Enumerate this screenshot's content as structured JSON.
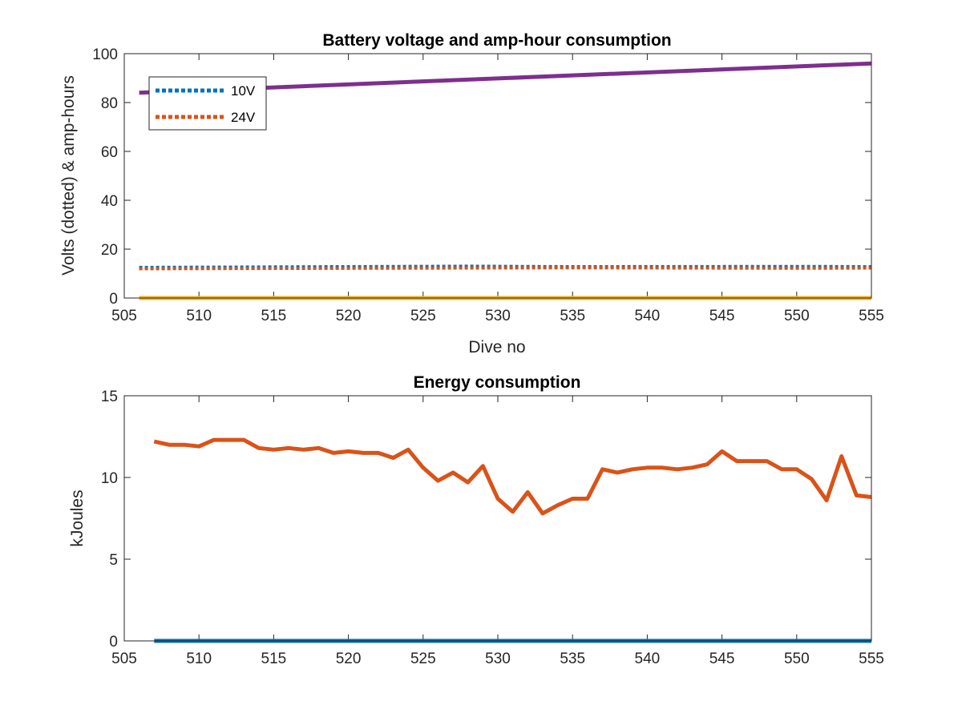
{
  "chart_data": [
    {
      "type": "line",
      "title": "Battery voltage and amp-hour consumption",
      "xlabel": "Dive no",
      "ylabel": "Volts (dotted) & amp-hours",
      "xlim": [
        505,
        555
      ],
      "ylim": [
        0,
        100
      ],
      "xticks": [
        505,
        510,
        515,
        520,
        525,
        530,
        535,
        540,
        545,
        550,
        555
      ],
      "yticks": [
        0,
        20,
        40,
        60,
        80,
        100
      ],
      "grid": false,
      "legend_position": "top-left",
      "series": [
        {
          "name": "10V",
          "style": "dotted",
          "color": "#0072BD",
          "x": [
            506,
            528,
            535,
            551,
            555
          ],
          "y": [
            12.5,
            13.0,
            12.8,
            12.9,
            12.8
          ]
        },
        {
          "name": "24V",
          "style": "dotted",
          "color": "#D95319",
          "x": [
            506,
            528,
            535,
            551,
            555
          ],
          "y": [
            12.0,
            12.3,
            12.4,
            12.2,
            12.3
          ]
        },
        {
          "style": "solid",
          "color": "#7E2F8E",
          "x": [
            506,
            555
          ],
          "y": [
            84,
            96
          ]
        },
        {
          "style": "solid",
          "color": "#EDB120",
          "x": [
            506,
            555
          ],
          "y": [
            0,
            0
          ]
        }
      ]
    },
    {
      "type": "line",
      "title": "Energy consumption",
      "xlabel": "",
      "ylabel": "kJoules",
      "xlim": [
        505,
        555
      ],
      "ylim": [
        0,
        15
      ],
      "xticks": [
        505,
        510,
        515,
        520,
        525,
        530,
        535,
        540,
        545,
        550,
        555
      ],
      "yticks": [
        0,
        5,
        10,
        15
      ],
      "grid": false,
      "series": [
        {
          "style": "solid",
          "color": "#0072BD",
          "x": [
            507,
            555
          ],
          "y": [
            0,
            0
          ]
        },
        {
          "style": "solid",
          "color": "#D95319",
          "x": [
            507,
            508,
            509,
            510,
            511,
            512,
            513,
            514,
            515,
            516,
            517,
            518,
            519,
            520,
            521,
            522,
            523,
            524,
            525,
            526,
            527,
            528,
            529,
            530,
            531,
            532,
            533,
            534,
            535,
            536,
            537,
            538,
            539,
            540,
            541,
            542,
            543,
            544,
            545,
            546,
            547,
            548,
            549,
            550,
            551,
            552,
            553,
            554,
            555
          ],
          "y": [
            12.2,
            12.0,
            12.0,
            11.9,
            12.3,
            12.3,
            12.3,
            11.8,
            11.7,
            11.8,
            11.7,
            11.8,
            11.5,
            11.6,
            11.5,
            11.5,
            11.2,
            11.7,
            10.6,
            9.8,
            10.3,
            9.7,
            10.7,
            8.7,
            7.9,
            9.1,
            7.8,
            8.3,
            8.7,
            8.7,
            10.5,
            10.3,
            10.5,
            10.6,
            10.6,
            10.5,
            10.6,
            10.8,
            11.6,
            11.0,
            11.0,
            11.0,
            10.5,
            10.5,
            9.9,
            8.6,
            11.3,
            8.9,
            8.8
          ]
        }
      ]
    }
  ]
}
